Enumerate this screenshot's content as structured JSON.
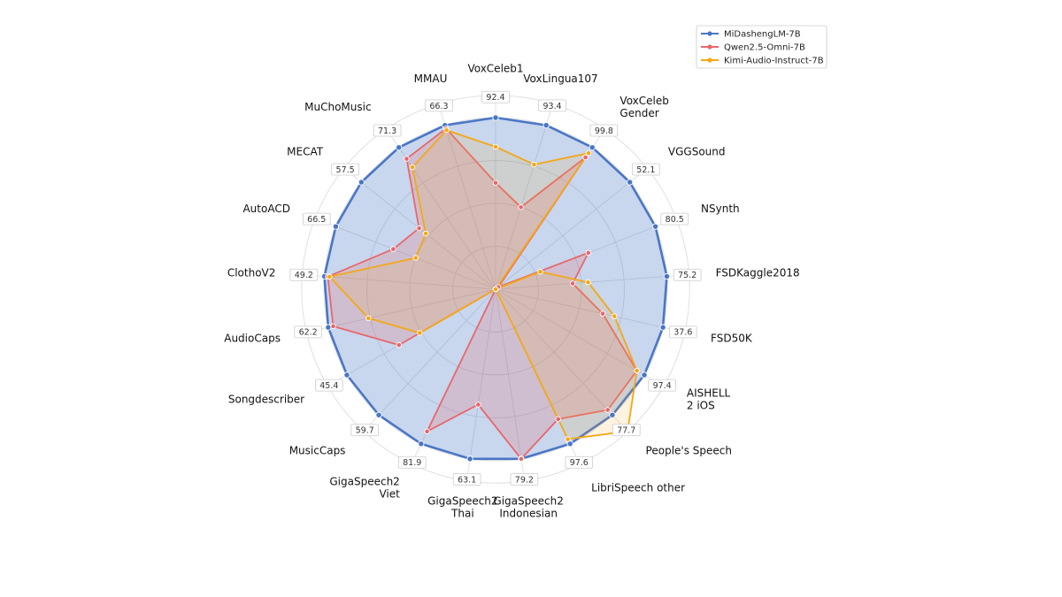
{
  "chart_data": {
    "type": "radar",
    "axes": [
      "VoxCeleb1",
      "VoxLingua107",
      "VoxCeleb\nGender",
      "VGGSound",
      "NSynth",
      "FSDKaggle2018",
      "FSD50K",
      "AISHELL\n2 iOS",
      "People's Speech",
      "LibriSpeech other",
      "GigaSpeech2\nIndonesian",
      "GigaSpeech2\nThai",
      "GigaSpeech2\nViet",
      "MusicCaps",
      "Songdescriber",
      "AudioCaps",
      "ClothoV2",
      "AutoACD",
      "MECAT",
      "MuChoMusic",
      "MMAU"
    ],
    "axis_values": [
      "92.4",
      "93.4",
      "99.8",
      "52.1",
      "80.5",
      "75.2",
      "37.6",
      "97.4",
      "77.7",
      "97.6",
      "79.2",
      "63.1",
      "81.9",
      "59.7",
      "45.4",
      "62.2",
      "49.2",
      "66.5",
      "57.5",
      "71.3",
      "66.3"
    ],
    "series": [
      {
        "name": "MiDashengLM-7B",
        "color": "#4a76c6",
        "values": [
          1.0,
          1.0,
          1.0,
          1.0,
          1.0,
          1.0,
          1.0,
          1.0,
          1.0,
          1.0,
          1.0,
          1.0,
          1.0,
          1.0,
          1.0,
          1.0,
          1.0,
          1.0,
          1.0,
          1.0,
          1.0
        ]
      },
      {
        "name": "Qwen2.5-Omni-7B",
        "color": "#e8676b",
        "values": [
          0.62,
          0.5,
          0.93,
          0.02,
          0.58,
          0.45,
          0.64,
          0.95,
          0.96,
          0.84,
          1.0,
          0.68,
          0.92,
          0.0,
          0.65,
          0.97,
          0.98,
          0.64,
          0.57,
          0.92,
          0.98
        ]
      },
      {
        "name": "Kimi-Audio-Instruct-7B",
        "color": "#f5a716",
        "values": [
          0.83,
          0.76,
          0.96,
          0.0,
          0.28,
          0.54,
          0.71,
          0.95,
          1.13,
          0.97,
          0.0,
          0.0,
          0.0,
          0.0,
          0.51,
          0.76,
          0.97,
          0.5,
          0.52,
          0.86,
          0.97
        ]
      }
    ],
    "legend_position": "top-right",
    "grid": true
  }
}
